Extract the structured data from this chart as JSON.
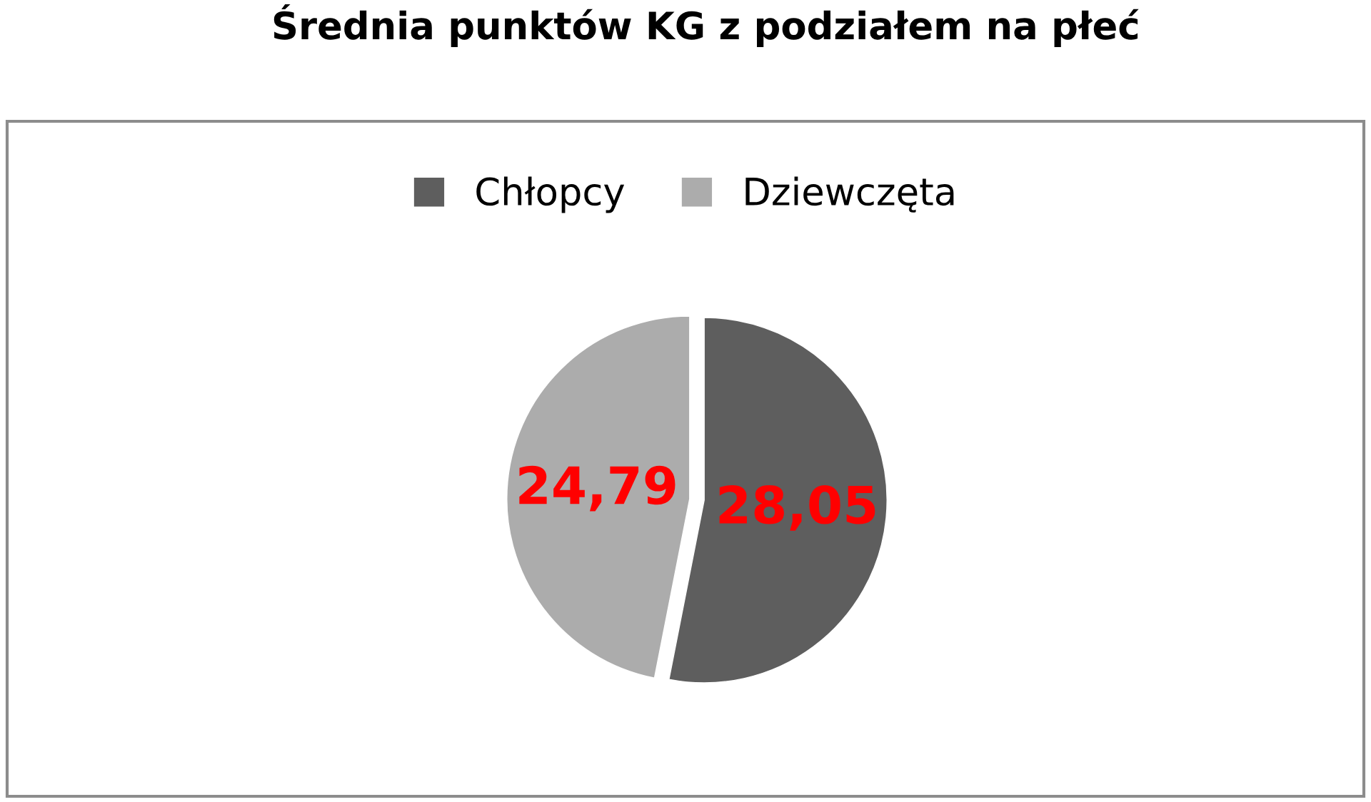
{
  "chart_data": {
    "type": "pie",
    "title": "Średnia punktów KG z podziałem na płeć",
    "categories": [
      "Chłopcy",
      "Dziewczęta"
    ],
    "values": [
      28.05,
      24.79
    ],
    "colors": [
      "#5e5e5e",
      "#acacac"
    ],
    "value_labels": [
      "28,05",
      "24,79"
    ],
    "legend": "top"
  }
}
